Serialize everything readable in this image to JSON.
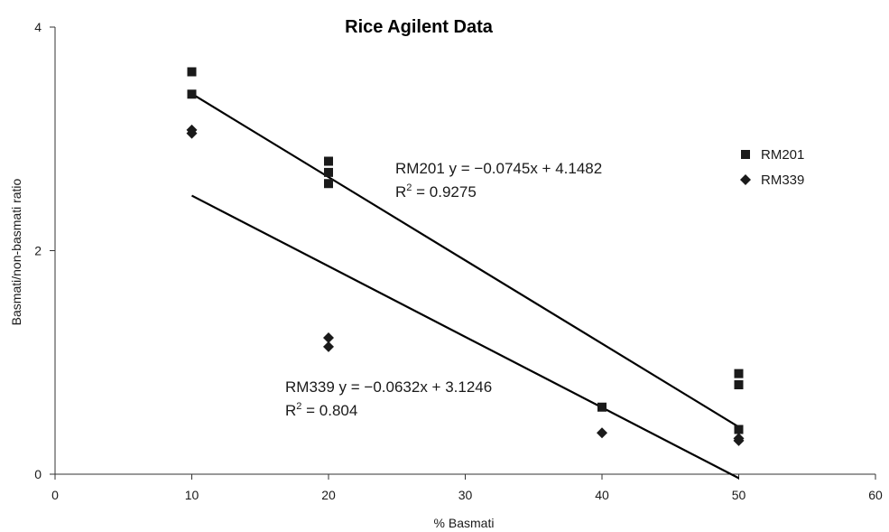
{
  "chart_data": {
    "type": "scatter",
    "title": "Rice Agilent Data",
    "xlabel": "% Basmati",
    "ylabel": "Basmati/non-basmati ratio",
    "xlim": [
      0,
      60
    ],
    "ylim": [
      0,
      4
    ],
    "xticks": [
      "0",
      "10",
      "20",
      "30",
      "40",
      "50",
      "60"
    ],
    "yticks": [
      "0",
      "2",
      "4"
    ],
    "grid": false,
    "legend_position": "right",
    "series": [
      {
        "name": "RM201",
        "marker": "square",
        "color": "#1a1a1a",
        "points": [
          [
            10,
            3.6
          ],
          [
            10,
            3.4
          ],
          [
            20,
            2.8
          ],
          [
            20,
            2.7
          ],
          [
            20,
            2.6
          ],
          [
            40,
            0.6
          ],
          [
            50,
            0.9
          ],
          [
            50,
            0.8
          ],
          [
            50,
            0.4
          ]
        ],
        "trendline": {
          "slope": -0.0745,
          "intercept": 4.1482,
          "x_range": [
            10,
            50
          ]
        },
        "equation": "RM201 y = −0.0745x + 4.1482",
        "r2_prefix": "R",
        "r2_sup": "2",
        "r2_value": " = 0.9275"
      },
      {
        "name": "RM339",
        "marker": "diamond",
        "color": "#1a1a1a",
        "points": [
          [
            10,
            3.08
          ],
          [
            10,
            3.05
          ],
          [
            20,
            1.22
          ],
          [
            20,
            1.14
          ],
          [
            40,
            0.37
          ],
          [
            50,
            0.32
          ],
          [
            50,
            0.3
          ]
        ],
        "trendline": {
          "slope": -0.0632,
          "intercept": 3.1246,
          "x_range": [
            10,
            50
          ]
        },
        "equation": "RM339 y = −0.0632x + 3.1246",
        "r2_prefix": "R",
        "r2_sup": "2",
        "r2_value": " = 0.804"
      }
    ]
  }
}
